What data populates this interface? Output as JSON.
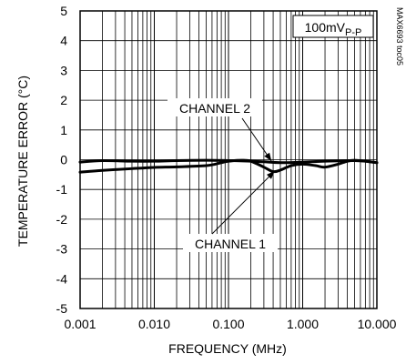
{
  "chart_data": {
    "type": "line",
    "title": "",
    "xlabel": "FREQUENCY (MHz)",
    "ylabel": "TEMPERATURE ERROR (°C)",
    "x_scale": "log",
    "xlim": [
      0.001,
      10
    ],
    "ylim": [
      -5,
      5
    ],
    "grid": true,
    "x_ticks": [
      0.001,
      0.01,
      0.1,
      1,
      10
    ],
    "x_tick_labels": [
      "0.001",
      "0.010",
      "0.100",
      "1.000",
      "10.000"
    ],
    "y_ticks": [
      -5,
      -4,
      -3,
      -2,
      -1,
      0,
      1,
      2,
      3,
      4,
      5
    ],
    "y_tick_labels": [
      "-5",
      "-4",
      "-3",
      "-2",
      "-1",
      "0",
      "1",
      "2",
      "3",
      "4",
      "5"
    ],
    "inset_label": "100mV",
    "inset_label_sub": "P-P",
    "figure_code": "MAX6693 toc05",
    "series": [
      {
        "name": "CHANNEL 1",
        "x": [
          0.001,
          0.002,
          0.005,
          0.01,
          0.02,
          0.05,
          0.08,
          0.1,
          0.15,
          0.2,
          0.3,
          0.4,
          0.5,
          0.7,
          1,
          1.5,
          2,
          3,
          4,
          5,
          7,
          10
        ],
        "y": [
          -0.42,
          -0.36,
          -0.3,
          -0.26,
          -0.24,
          -0.2,
          -0.1,
          -0.05,
          -0.02,
          -0.05,
          -0.25,
          -0.4,
          -0.35,
          -0.2,
          -0.15,
          -0.2,
          -0.25,
          -0.15,
          -0.05,
          -0.02,
          -0.05,
          -0.1
        ]
      },
      {
        "name": "CHANNEL 2",
        "x": [
          0.001,
          0.002,
          0.005,
          0.01,
          0.02,
          0.05,
          0.1,
          0.2,
          0.3,
          0.5,
          1,
          2,
          3,
          5,
          7,
          10
        ],
        "y": [
          -0.08,
          -0.03,
          -0.05,
          -0.05,
          -0.03,
          -0.02,
          -0.03,
          -0.05,
          -0.07,
          -0.1,
          -0.08,
          -0.05,
          -0.04,
          -0.03,
          -0.05,
          -0.1
        ]
      }
    ],
    "annotations": [
      {
        "text": "CHANNEL 2",
        "series": "CHANNEL 2",
        "target": [
          0.38,
          -0.05
        ]
      },
      {
        "text": "CHANNEL 1",
        "series": "CHANNEL 1",
        "target": [
          0.42,
          -0.38
        ]
      }
    ]
  }
}
